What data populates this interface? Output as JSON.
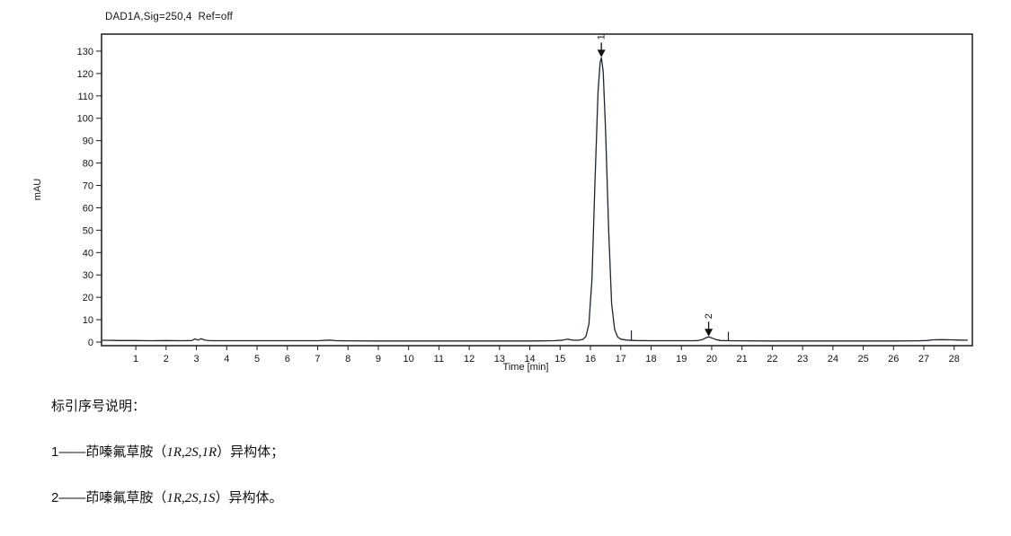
{
  "page": {
    "background": "#ffffff"
  },
  "chart_data": {
    "type": "line",
    "title": "DAD1A,Sig=250,4  Ref=off",
    "xlabel": "Time [min]",
    "ylabel": "mAU",
    "xlim": [
      -0.13,
      28.6
    ],
    "ylim": [
      -1.6,
      137.6
    ],
    "xticks": [
      1,
      2,
      3,
      4,
      5,
      6,
      7,
      8,
      9,
      10,
      11,
      12,
      13,
      14,
      15,
      16,
      17,
      18,
      19,
      20,
      21,
      22,
      23,
      24,
      25,
      26,
      27,
      28
    ],
    "yticks": [
      0,
      10,
      20,
      30,
      40,
      50,
      60,
      70,
      80,
      90,
      100,
      110,
      120,
      130
    ],
    "grid": false,
    "legend": "none",
    "frame_color": "#1a1a1a",
    "line_color": "#1c2430",
    "trace": {
      "x": [
        -0.1,
        0.5,
        1.0,
        1.5,
        2.0,
        2.5,
        2.85,
        2.95,
        3.05,
        3.15,
        3.3,
        3.5,
        4.0,
        5.0,
        6.0,
        7.0,
        7.4,
        7.6,
        8.0,
        9.0,
        10.0,
        11.0,
        12.0,
        13.0,
        14.0,
        14.8,
        15.1,
        15.25,
        15.4,
        15.6,
        15.75,
        15.85,
        15.95,
        16.05,
        16.15,
        16.25,
        16.32,
        16.36,
        16.42,
        16.5,
        16.6,
        16.7,
        16.8,
        16.9,
        17.0,
        17.2,
        17.5,
        18.0,
        18.5,
        19.0,
        19.4,
        19.55,
        19.7,
        19.8,
        19.9,
        20.0,
        20.15,
        20.3,
        20.6,
        21.0,
        22.0,
        23.0,
        24.0,
        25.0,
        26.0,
        26.8,
        27.1,
        27.3,
        27.6,
        27.9,
        28.2,
        28.45
      ],
      "y": [
        0.8,
        0.7,
        0.7,
        0.6,
        0.7,
        0.6,
        0.7,
        1.4,
        0.9,
        1.5,
        0.8,
        0.6,
        0.6,
        0.6,
        0.6,
        0.6,
        0.9,
        0.6,
        0.55,
        0.5,
        0.5,
        0.5,
        0.5,
        0.5,
        0.5,
        0.6,
        0.9,
        1.3,
        0.9,
        0.8,
        1.2,
        2.5,
        8,
        28,
        72,
        112,
        125,
        127,
        121,
        94,
        50,
        17,
        5.5,
        2.2,
        1.3,
        0.9,
        0.7,
        0.6,
        0.6,
        0.6,
        0.6,
        0.7,
        1.1,
        1.9,
        2.3,
        1.9,
        1.1,
        0.7,
        0.6,
        0.55,
        0.5,
        0.5,
        0.5,
        0.5,
        0.5,
        0.55,
        0.7,
        1.0,
        1.1,
        1.0,
        0.9,
        0.85
      ]
    },
    "peaks": [
      {
        "label": "1",
        "time": 16.36,
        "apex_mau": 127
      },
      {
        "label": "2",
        "time": 19.9,
        "apex_mau": 2.3
      }
    ],
    "integration_marks": [
      {
        "time": 17.35,
        "top_mau": 5.2
      },
      {
        "time": 20.55,
        "top_mau": 4.6
      }
    ]
  },
  "notes": {
    "heading": "标引序号说明：",
    "items": [
      {
        "pre": "1——茚嗪氟草胺（",
        "stereo": "1R,2S,1R",
        "post": "）异构体；"
      },
      {
        "pre": "2——茚嗪氟草胺（",
        "stereo": "1R,2S,1S",
        "post": "）异构体。"
      }
    ]
  }
}
